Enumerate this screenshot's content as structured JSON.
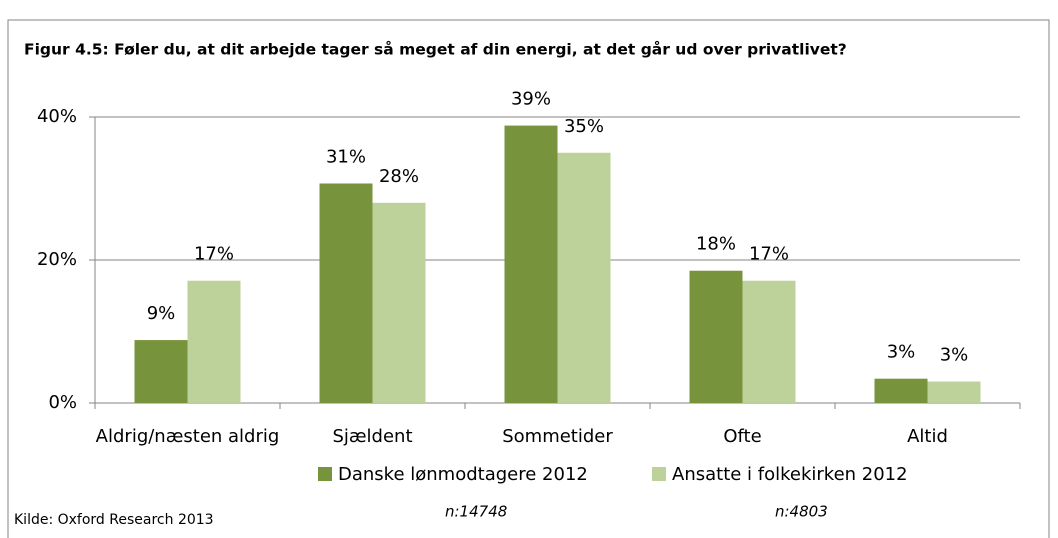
{
  "chart_data": {
    "type": "bar",
    "title": "Figur 4.5: Føler du, at dit arbejde tager så meget af din energi, at det går ud over privatlivet?",
    "categories": [
      "Aldrig/næsten aldrig",
      "Sjældent",
      "Sommetider",
      "Ofte",
      "Altid"
    ],
    "series": [
      {
        "name": "Danske lønmodtagere 2012",
        "color": "#77933c",
        "values": [
          8.8,
          30.7,
          38.8,
          18.5,
          3.4
        ],
        "value_labels": [
          "9%",
          "31%",
          "39%",
          "18%",
          "3%"
        ],
        "sample_label": "n:14748"
      },
      {
        "name": "Ansatte i folkekirken 2012",
        "color": "#bcd29a",
        "values": [
          17.1,
          28,
          35,
          17.1,
          3.0
        ],
        "value_labels": [
          "17%",
          "28%",
          "35%",
          "17%",
          "3%"
        ],
        "sample_label": "n:4803"
      }
    ],
    "ylim": [
      0,
      40
    ],
    "yticks": [
      {
        "value": 0,
        "label": "0%"
      },
      {
        "value": 20,
        "label": "20%"
      },
      {
        "value": 40,
        "label": "40%"
      }
    ],
    "grid": true,
    "legend": "bottom",
    "source": "Kilde: Oxford Research 2013"
  }
}
